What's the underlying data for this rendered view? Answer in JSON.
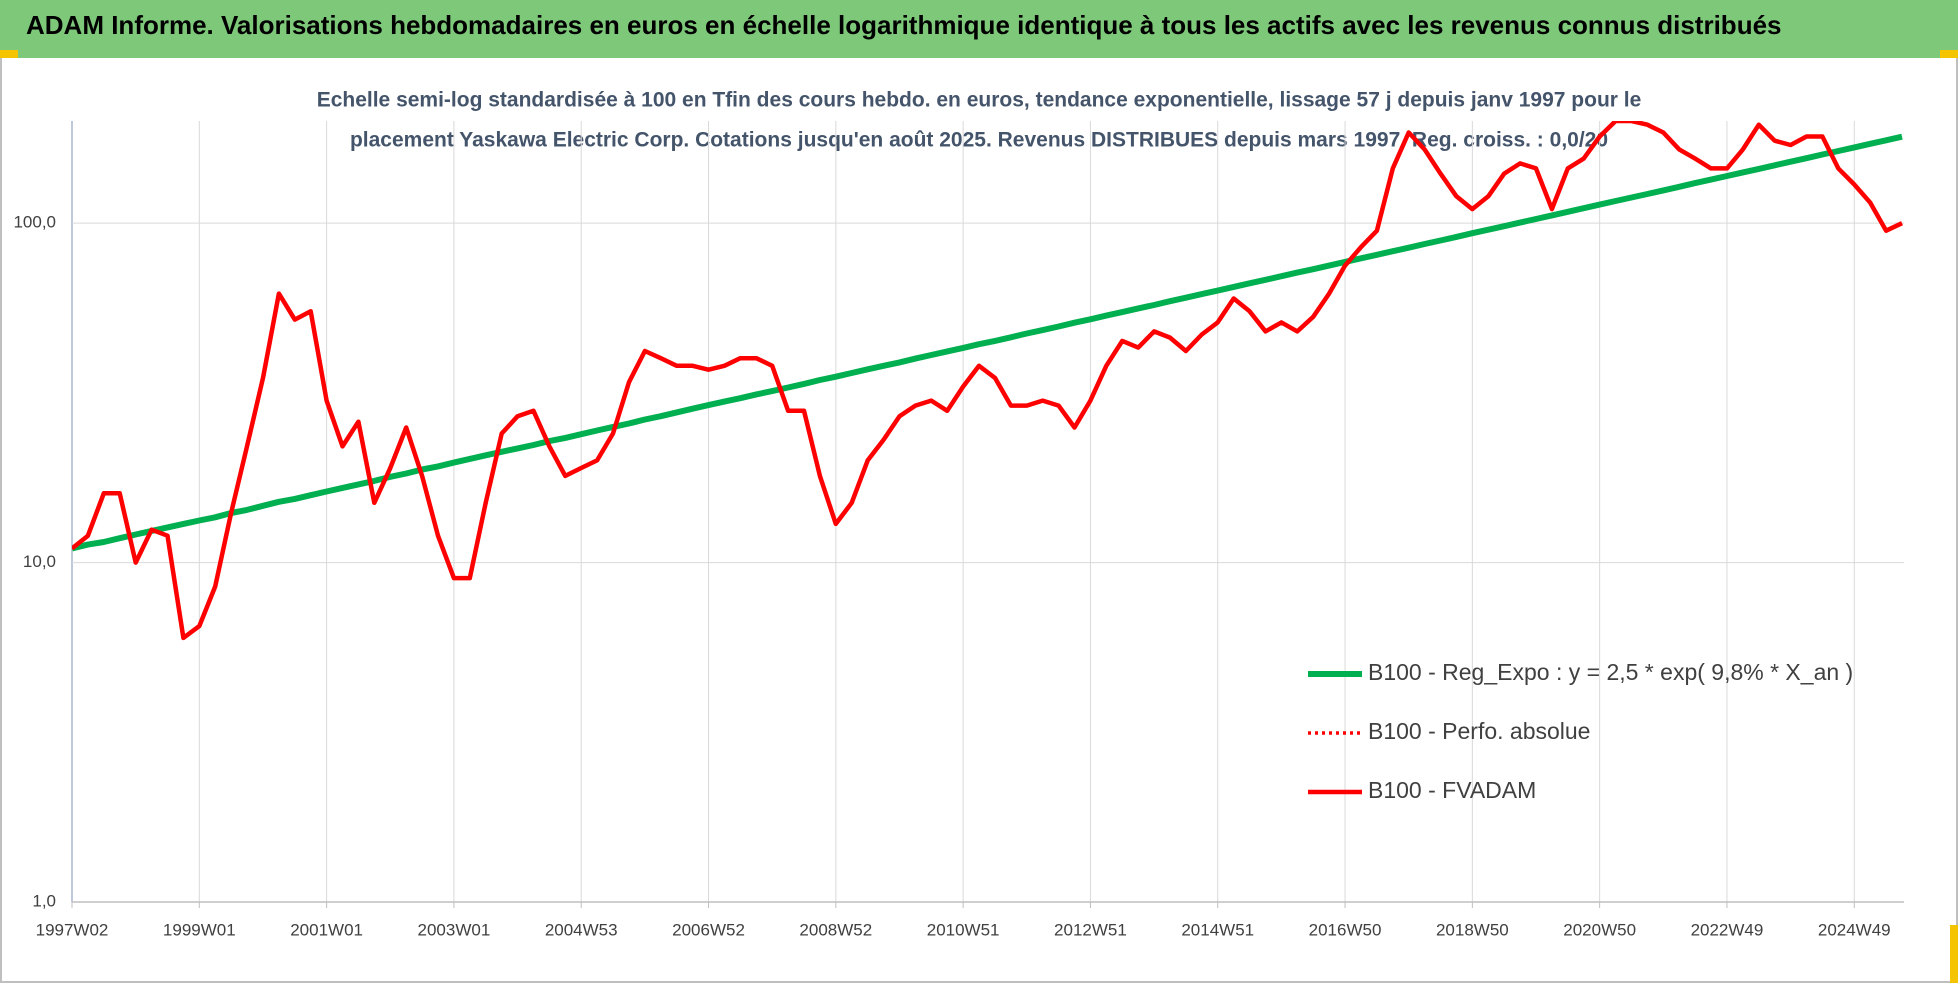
{
  "chart_data": {
    "type": "line",
    "title": "ADAM Informe. Valorisations hebdomadaires en euros en échelle logarithmique identique à tous les actifs avec les revenus connus distribués",
    "subtitle": [
      "Echelle semi-log standardisée à 100 en Tfin des cours hebdo. en euros, tendance exponentielle, lissage 57 j depuis janv 1997 pour le",
      "placement Yaskawa Electric Corp. Cotations jusqu'en août 2025. Revenus DISTRIBUES depuis mars 1997. Reg. croiss. : 0,0/20"
    ],
    "categories": [
      "1997W02",
      null,
      null,
      null,
      null,
      null,
      null,
      null,
      "1999W01",
      null,
      null,
      null,
      null,
      null,
      null,
      null,
      "2001W01",
      null,
      null,
      null,
      null,
      null,
      null,
      null,
      "2003W01",
      null,
      null,
      null,
      null,
      null,
      null,
      null,
      "2004W53",
      null,
      null,
      null,
      null,
      null,
      null,
      null,
      "2006W52",
      null,
      null,
      null,
      null,
      null,
      null,
      null,
      "2008W52",
      null,
      null,
      null,
      null,
      null,
      null,
      null,
      "2010W51",
      null,
      null,
      null,
      null,
      null,
      null,
      null,
      "2012W51",
      null,
      null,
      null,
      null,
      null,
      null,
      null,
      "2014W51",
      null,
      null,
      null,
      null,
      null,
      null,
      null,
      "2016W50",
      null,
      null,
      null,
      null,
      null,
      null,
      null,
      "2018W50",
      null,
      null,
      null,
      null,
      null,
      null,
      null,
      "2020W50",
      null,
      null,
      null,
      null,
      null,
      null,
      null,
      "2022W49",
      null,
      null,
      null,
      null,
      null,
      null,
      null,
      "2024W49",
      null,
      null,
      null
    ],
    "series": [
      {
        "name": "B100 - Reg_Expo : y = 2,5 * exp( 9,8% *  X_an )",
        "color": "#00b050",
        "style": "solid",
        "values": [
          11.0,
          11.3,
          11.5,
          11.8,
          12.1,
          12.4,
          12.7,
          13.0,
          13.3,
          13.6,
          14.0,
          14.3,
          14.7,
          15.1,
          15.4,
          15.8,
          16.2,
          16.6,
          17.0,
          17.4,
          17.9,
          18.3,
          18.8,
          19.2,
          19.7,
          20.2,
          20.7,
          21.2,
          21.7,
          22.2,
          22.8,
          23.3,
          23.9,
          24.5,
          25.1,
          25.7,
          26.4,
          27.0,
          27.7,
          28.4,
          29.1,
          29.8,
          30.5,
          31.3,
          32.0,
          32.8,
          33.6,
          34.5,
          35.3,
          36.2,
          37.1,
          38.0,
          38.9,
          39.9,
          40.9,
          41.9,
          42.9,
          44.0,
          45.0,
          46.1,
          47.3,
          48.4,
          49.6,
          50.9,
          52.1,
          53.4,
          54.7,
          56.1,
          57.4,
          58.9,
          60.3,
          61.8,
          63.3,
          64.9,
          66.5,
          68.1,
          69.8,
          71.5,
          73.2,
          75.0,
          76.9,
          78.8,
          80.7,
          82.7,
          84.7,
          86.8,
          88.9,
          91.1,
          93.4,
          95.7,
          98.0,
          100.4,
          102.9,
          105.4,
          108.0,
          110.7,
          113.4,
          116.2,
          119.0,
          121.9,
          124.9,
          128.0,
          131.2,
          134.4,
          137.7,
          141.1,
          144.5,
          148.1,
          151.7,
          155.4,
          159.3,
          163.2,
          167.2,
          171.3,
          175.5,
          179.8
        ]
      },
      {
        "name": "B100 - Perfo. absolue",
        "color": "#ff0000",
        "style": "dotted",
        "values": [
          11,
          12,
          16,
          16,
          10,
          12.5,
          12,
          6,
          6.5,
          8.5,
          14,
          22,
          35,
          62,
          52,
          55,
          30,
          22,
          26,
          15,
          19,
          25,
          18,
          12,
          9,
          9,
          15,
          24,
          27,
          28,
          22,
          18,
          19,
          20,
          24,
          34,
          42,
          40,
          38,
          38,
          37,
          38,
          40,
          40,
          38,
          28,
          28,
          18,
          13,
          15,
          20,
          23,
          27,
          29,
          30,
          28,
          33,
          38,
          35,
          29,
          29,
          30,
          29,
          25,
          30,
          38,
          45,
          43,
          48,
          46,
          42,
          47,
          51,
          60,
          55,
          48,
          51,
          48,
          53,
          62,
          75,
          85,
          95,
          145,
          185,
          165,
          140,
          120,
          110,
          120,
          140,
          150,
          145,
          110,
          145,
          155,
          180,
          200,
          200,
          195,
          185,
          165,
          155,
          145,
          145,
          165,
          195,
          175,
          170,
          180,
          180,
          145,
          130,
          115,
          95,
          100
        ]
      },
      {
        "name": "B100 - FVADAM",
        "color": "#ff0000",
        "style": "solid",
        "values": [
          11,
          12,
          16,
          16,
          10,
          12.5,
          12,
          6,
          6.5,
          8.5,
          14,
          22,
          35,
          62,
          52,
          55,
          30,
          22,
          26,
          15,
          19,
          25,
          18,
          12,
          9,
          9,
          15,
          24,
          27,
          28,
          22,
          18,
          19,
          20,
          24,
          34,
          42,
          40,
          38,
          38,
          37,
          38,
          40,
          40,
          38,
          28,
          28,
          18,
          13,
          15,
          20,
          23,
          27,
          29,
          30,
          28,
          33,
          38,
          35,
          29,
          29,
          30,
          29,
          25,
          30,
          38,
          45,
          43,
          48,
          46,
          42,
          47,
          51,
          60,
          55,
          48,
          51,
          48,
          53,
          62,
          75,
          85,
          95,
          145,
          185,
          165,
          140,
          120,
          110,
          120,
          140,
          150,
          145,
          110,
          145,
          155,
          180,
          200,
          200,
          195,
          185,
          165,
          155,
          145,
          145,
          165,
          195,
          175,
          170,
          180,
          180,
          145,
          130,
          115,
          95,
          100
        ]
      }
    ],
    "ylim": [
      1,
      200
    ],
    "yticks": [
      {
        "value": 1,
        "label": "1,0"
      },
      {
        "value": 10,
        "label": "10,0"
      },
      {
        "value": 100,
        "label": "100,0"
      }
    ],
    "log_scale": true,
    "grid": true,
    "legend": "right"
  }
}
